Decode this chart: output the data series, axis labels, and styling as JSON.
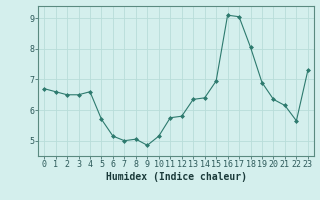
{
  "x": [
    0,
    1,
    2,
    3,
    4,
    5,
    6,
    7,
    8,
    9,
    10,
    11,
    12,
    13,
    14,
    15,
    16,
    17,
    18,
    19,
    20,
    21,
    22,
    23
  ],
  "y": [
    6.7,
    6.6,
    6.5,
    6.5,
    6.6,
    5.7,
    5.15,
    5.0,
    5.05,
    4.85,
    5.15,
    5.75,
    5.8,
    6.35,
    6.4,
    6.95,
    9.1,
    9.05,
    8.05,
    6.9,
    6.35,
    6.15,
    5.65,
    7.3
  ],
  "line_color": "#2d7a6e",
  "marker": "D",
  "marker_size": 2,
  "bg_color": "#d4efed",
  "grid_color": "#b8ddd9",
  "xlabel": "Humidex (Indice chaleur)",
  "xlabel_fontsize": 7,
  "tick_fontsize": 6,
  "ylim": [
    4.5,
    9.4
  ],
  "xlim": [
    -0.5,
    23.5
  ],
  "yticks": [
    5,
    6,
    7,
    8,
    9
  ],
  "xticks": [
    0,
    1,
    2,
    3,
    4,
    5,
    6,
    7,
    8,
    9,
    10,
    11,
    12,
    13,
    14,
    15,
    16,
    17,
    18,
    19,
    20,
    21,
    22,
    23
  ],
  "xtick_labels": [
    "0",
    "1",
    "2",
    "3",
    "4",
    "5",
    "6",
    "7",
    "8",
    "9",
    "10",
    "11",
    "12",
    "13",
    "14",
    "15",
    "16",
    "17",
    "18",
    "19",
    "20",
    "21",
    "22",
    "23"
  ]
}
